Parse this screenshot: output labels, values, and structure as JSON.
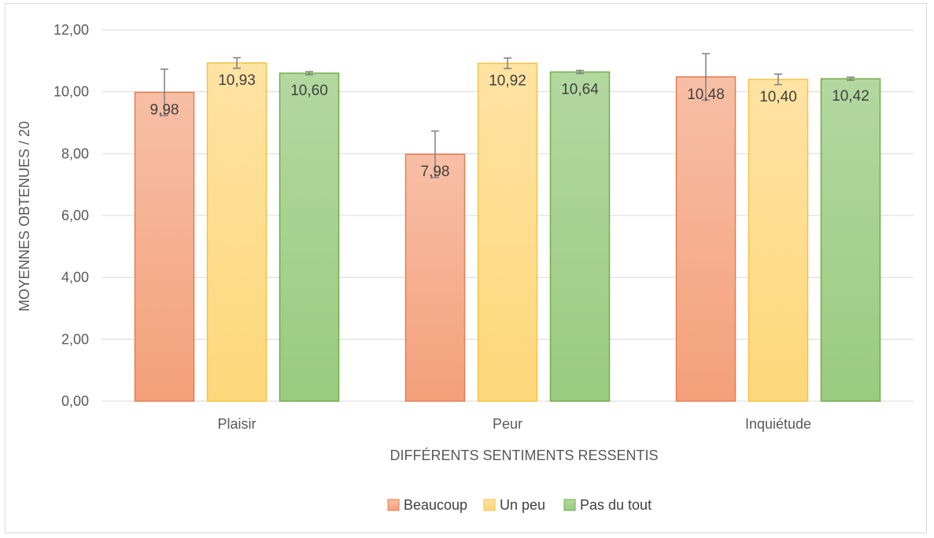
{
  "chart_data": {
    "type": "bar",
    "categories": [
      "Plaisir",
      "Peur",
      "Inquiétude"
    ],
    "series": [
      {
        "name": "Beaucoup",
        "values": [
          9.98,
          7.98,
          10.48
        ],
        "error": [
          0.75,
          0.75,
          0.75
        ],
        "labels": [
          "9,98",
          "7,98",
          "10,48"
        ],
        "color": "#f4a07a",
        "color_top": "#f7bfa6",
        "border": "#e57d4f"
      },
      {
        "name": "Un peu",
        "values": [
          10.93,
          10.92,
          10.4
        ],
        "error": [
          0.17,
          0.17,
          0.17
        ],
        "labels": [
          "10,93",
          "10,92",
          "10,40"
        ],
        "color": "#fed77a",
        "color_top": "#ffe3a3",
        "border": "#f5c242"
      },
      {
        "name": "Pas du tout",
        "values": [
          10.6,
          10.64,
          10.42
        ],
        "error": [
          0.05,
          0.05,
          0.05
        ],
        "labels": [
          "10,60",
          "10,64",
          "10,42"
        ],
        "color": "#9acb7f",
        "color_top": "#b3d8a0",
        "border": "#71ad47"
      }
    ],
    "yticks": [
      "0,00",
      "2,00",
      "4,00",
      "6,00",
      "8,00",
      "10,00",
      "12,00"
    ],
    "ylim": [
      0,
      12
    ],
    "xlabel": "DIFFÉRENTS SENTIMENTS RESSENTIS",
    "ylabel": "MOYENNES OBTENUES / 20",
    "grid": true,
    "legend_position": "bottom"
  }
}
